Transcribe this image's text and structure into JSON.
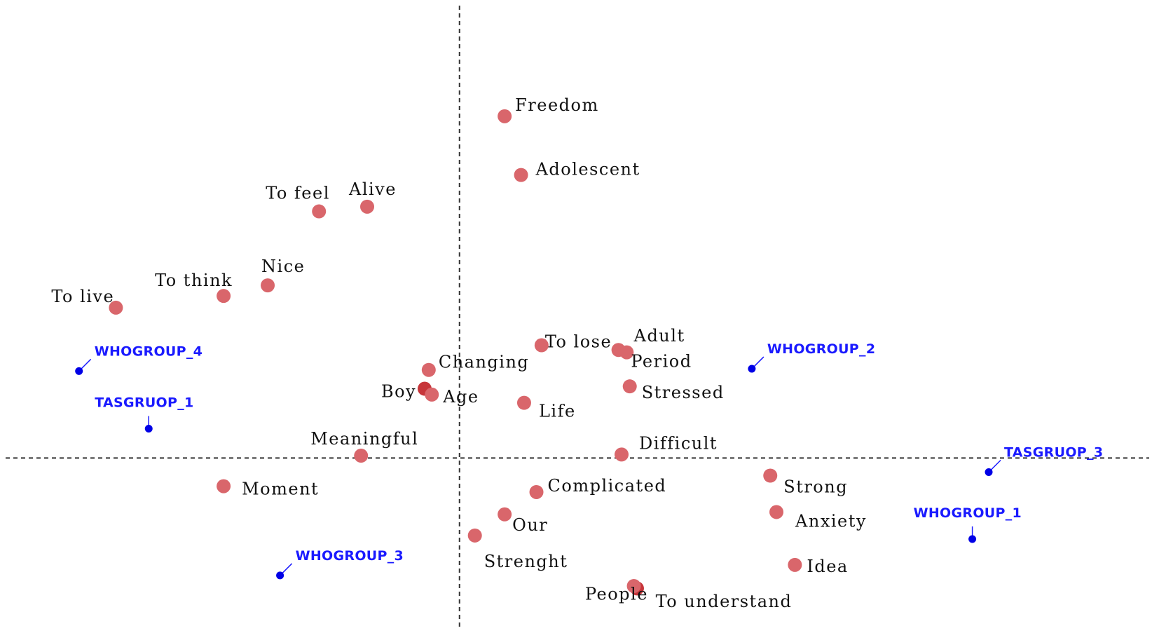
{
  "chart_data": {
    "type": "scatter",
    "colors": {
      "term": "#d9666b",
      "term_dark": "#c7353a",
      "group": "#0000e6",
      "group_label": "#1a1aff",
      "axis": "#333333"
    },
    "terms": [
      {
        "label": "Freedom",
        "x": 0.44,
        "y": 2.91
      },
      {
        "label": "Adolescent",
        "x": 0.6,
        "y": 2.41
      },
      {
        "label": "To feel",
        "x": -1.37,
        "y": 2.1
      },
      {
        "label": "Alive",
        "x": -0.9,
        "y": 2.14
      },
      {
        "label": "Nice",
        "x": -1.87,
        "y": 1.47
      },
      {
        "label": "To think",
        "x": -2.3,
        "y": 1.38
      },
      {
        "label": "To live",
        "x": -3.35,
        "y": 1.28
      },
      {
        "label": "To lose",
        "x": 0.8,
        "y": 0.96
      },
      {
        "label": "Adult",
        "x": 1.55,
        "y": 0.92
      },
      {
        "label": "Period",
        "x": 1.63,
        "y": 0.9
      },
      {
        "label": "Changing",
        "x": -0.3,
        "y": 0.75
      },
      {
        "label": "Boy",
        "x": -0.34,
        "y": 0.59
      },
      {
        "label": "Age",
        "x": -0.27,
        "y": 0.54
      },
      {
        "label": "Stressed",
        "x": 1.66,
        "y": 0.61
      },
      {
        "label": "Life",
        "x": 0.63,
        "y": 0.47
      },
      {
        "label": "Meaningful",
        "x": -0.96,
        "y": 0.02
      },
      {
        "label": "Difficult",
        "x": 1.58,
        "y": 0.03
      },
      {
        "label": "Moment",
        "x": -2.3,
        "y": -0.24
      },
      {
        "label": "Complicated",
        "x": 0.75,
        "y": -0.29
      },
      {
        "label": "Strong",
        "x": 3.03,
        "y": -0.15
      },
      {
        "label": "Our",
        "x": 0.44,
        "y": -0.48
      },
      {
        "label": "Anxiety",
        "x": 3.09,
        "y": -0.46
      },
      {
        "label": "Strenght",
        "x": 0.15,
        "y": -0.66
      },
      {
        "label": "Idea",
        "x": 3.27,
        "y": -0.91
      },
      {
        "label": "People",
        "x": 1.73,
        "y": -1.11
      },
      {
        "label": "To understand",
        "x": 1.7,
        "y": -1.09
      }
    ],
    "groups": [
      {
        "label": "WHOGROUP_4",
        "x": -3.71,
        "y": 0.74
      },
      {
        "label": "TASGRUOP_1",
        "x": -3.03,
        "y": 0.25
      },
      {
        "label": "WHOGROUP_2",
        "x": 2.85,
        "y": 0.76
      },
      {
        "label": "TASGRUOP_3",
        "x": 5.16,
        "y": -0.12
      },
      {
        "label": "WHOGROUP_1",
        "x": 5.0,
        "y": -0.69
      },
      {
        "label": "WHOGROUP_3",
        "x": -1.75,
        "y": -1.0
      }
    ],
    "xlim": [
      -4.48,
      6.82
    ],
    "ylim": [
      -1.49,
      3.9
    ],
    "origin": [
      0,
      0
    ],
    "grid": false,
    "legend": "none"
  }
}
